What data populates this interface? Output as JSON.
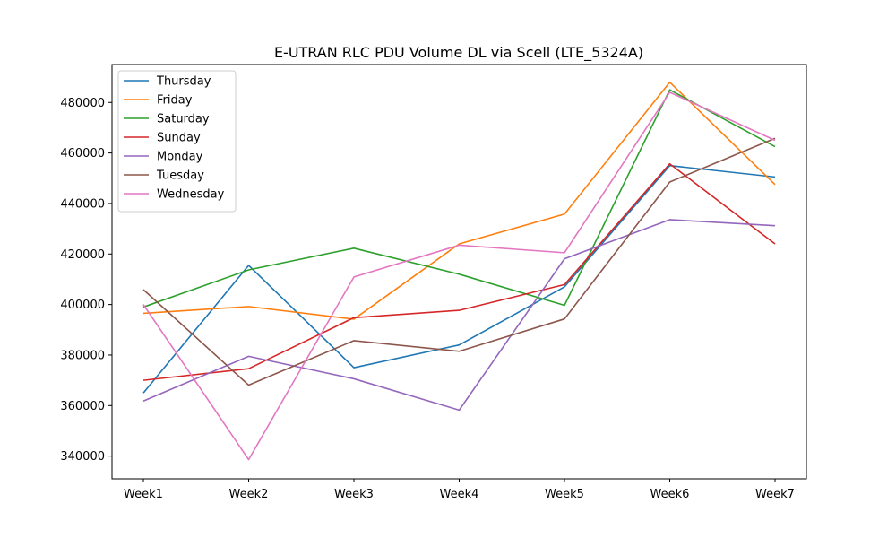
{
  "chart_data": {
    "type": "line",
    "title": "E-UTRAN RLC PDU Volume DL via Scell (LTE_5324A)",
    "xlabel": "",
    "ylabel": "",
    "categories": [
      "Week1",
      "Week2",
      "Week3",
      "Week4",
      "Week5",
      "Week6",
      "Week7"
    ],
    "ylim": [
      331000,
      495000
    ],
    "yticks": [
      340000,
      360000,
      380000,
      400000,
      420000,
      440000,
      460000,
      480000
    ],
    "grid": false,
    "legend_position": "top-left",
    "series": [
      {
        "name": "Thursday",
        "color": "#1f77b4",
        "values": [
          365000,
          415500,
          375000,
          384000,
          407000,
          455000,
          450500
        ]
      },
      {
        "name": "Friday",
        "color": "#ff7f0e",
        "values": [
          396500,
          399200,
          394200,
          424000,
          435800,
          488000,
          447500
        ]
      },
      {
        "name": "Saturday",
        "color": "#2ca02c",
        "values": [
          399000,
          413700,
          422300,
          412000,
          399700,
          485000,
          462500
        ]
      },
      {
        "name": "Sunday",
        "color": "#d62728",
        "values": [
          370000,
          374600,
          394800,
          397700,
          407900,
          455700,
          424000
        ]
      },
      {
        "name": "Monday",
        "color": "#9467bd",
        "values": [
          361800,
          379500,
          370600,
          358200,
          418100,
          433600,
          431200
        ]
      },
      {
        "name": "Tuesday",
        "color": "#8c564b",
        "values": [
          405900,
          368100,
          385700,
          381500,
          394300,
          448500,
          465800
        ]
      },
      {
        "name": "Wednesday",
        "color": "#e377c2",
        "values": [
          400000,
          338600,
          410900,
          423500,
          420500,
          484000,
          465000
        ]
      }
    ]
  }
}
